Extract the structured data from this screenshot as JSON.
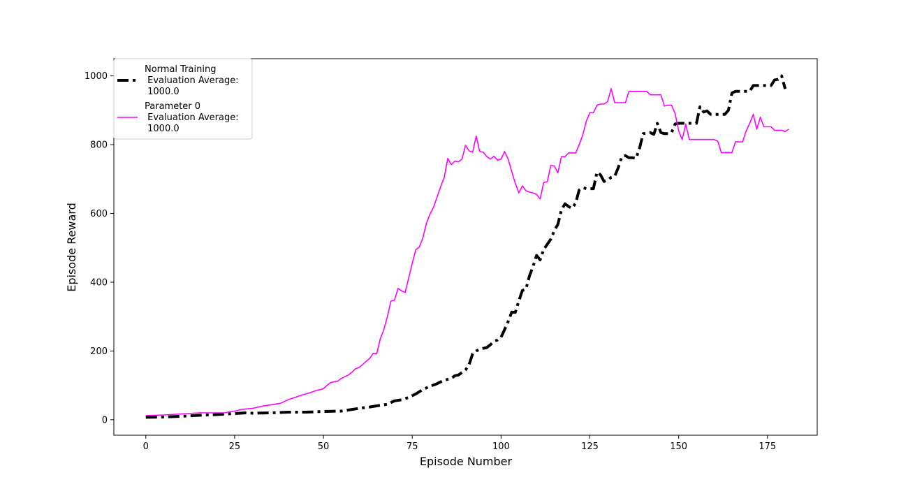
{
  "chart_data": {
    "type": "line",
    "title": "",
    "xlabel": "Episode Number",
    "ylabel": "Episode Reward",
    "xlim": [
      -9,
      189
    ],
    "ylim": [
      -45,
      1050
    ],
    "xticks": [
      0,
      25,
      50,
      75,
      100,
      125,
      150,
      175
    ],
    "yticks": [
      0,
      200,
      400,
      600,
      800,
      1000
    ],
    "grid": false,
    "legend_position": "upper-left",
    "series": [
      {
        "name": "Normal Training\n Evaluation Average:\n 1000.0",
        "color": "#000000",
        "line_style": "dash-dot",
        "points": [
          [
            0,
            7
          ],
          [
            5,
            8
          ],
          [
            10,
            10
          ],
          [
            15,
            13
          ],
          [
            20,
            15
          ],
          [
            25,
            18
          ],
          [
            28,
            20
          ],
          [
            30,
            19
          ],
          [
            35,
            20
          ],
          [
            40,
            22
          ],
          [
            45,
            22
          ],
          [
            50,
            24
          ],
          [
            55,
            25
          ],
          [
            60,
            33
          ],
          [
            63,
            37
          ],
          [
            66,
            42
          ],
          [
            68,
            45
          ],
          [
            70,
            55
          ],
          [
            72,
            58
          ],
          [
            74,
            65
          ],
          [
            76,
            75
          ],
          [
            78,
            88
          ],
          [
            80,
            97
          ],
          [
            82,
            105
          ],
          [
            84,
            115
          ],
          [
            86,
            120
          ],
          [
            87,
            128
          ],
          [
            88,
            130
          ],
          [
            90,
            145
          ],
          [
            91,
            160
          ],
          [
            92,
            192
          ],
          [
            93,
            200
          ],
          [
            94,
            205
          ],
          [
            96,
            210
          ],
          [
            97,
            218
          ],
          [
            98,
            228
          ],
          [
            99,
            232
          ],
          [
            100,
            240
          ],
          [
            101,
            262
          ],
          [
            102,
            285
          ],
          [
            103,
            313
          ],
          [
            104,
            312
          ],
          [
            105,
            345
          ],
          [
            106,
            376
          ],
          [
            107,
            380
          ],
          [
            108,
            418
          ],
          [
            109,
            445
          ],
          [
            110,
            478
          ],
          [
            111,
            465
          ],
          [
            112,
            495
          ],
          [
            113,
            510
          ],
          [
            114,
            525
          ],
          [
            115,
            550
          ],
          [
            116,
            568
          ],
          [
            117,
            610
          ],
          [
            118,
            628
          ],
          [
            119,
            620
          ],
          [
            120,
            615
          ],
          [
            121,
            630
          ],
          [
            122,
            668
          ],
          [
            123,
            675
          ],
          [
            124,
            672
          ],
          [
            126,
            672
          ],
          [
            127,
            720
          ],
          [
            128,
            712
          ],
          [
            129,
            693
          ],
          [
            130,
            697
          ],
          [
            131,
            705
          ],
          [
            132,
            708
          ],
          [
            133,
            733
          ],
          [
            134,
            765
          ],
          [
            135,
            768
          ],
          [
            136,
            762
          ],
          [
            137,
            762
          ],
          [
            138,
            760
          ],
          [
            139,
            790
          ],
          [
            140,
            832
          ],
          [
            142,
            835
          ],
          [
            143,
            830
          ],
          [
            144,
            862
          ],
          [
            145,
            835
          ],
          [
            146,
            832
          ],
          [
            147,
            832
          ],
          [
            148,
            835
          ],
          [
            149,
            860
          ],
          [
            150,
            862
          ],
          [
            152,
            862
          ],
          [
            155,
            862
          ],
          [
            156,
            910
          ],
          [
            157,
            895
          ],
          [
            158,
            898
          ],
          [
            159,
            888
          ],
          [
            163,
            888
          ],
          [
            164,
            900
          ],
          [
            165,
            950
          ],
          [
            166,
            955
          ],
          [
            167,
            955
          ],
          [
            169,
            955
          ],
          [
            170,
            955
          ],
          [
            171,
            972
          ],
          [
            173,
            972
          ],
          [
            175,
            972
          ],
          [
            176,
            972
          ],
          [
            177,
            988
          ],
          [
            178,
            990
          ],
          [
            179,
            1000
          ],
          [
            180,
            962
          ]
        ]
      },
      {
        "name": "Parameter 0\n Evaluation Average:\n 1000.0",
        "color": "#ff00ff",
        "line_style": "solid",
        "points": [
          [
            0,
            12
          ],
          [
            5,
            14
          ],
          [
            10,
            17
          ],
          [
            15,
            20
          ],
          [
            18,
            20
          ],
          [
            22,
            20
          ],
          [
            25,
            25
          ],
          [
            27,
            30
          ],
          [
            30,
            33
          ],
          [
            33,
            40
          ],
          [
            35,
            43
          ],
          [
            38,
            48
          ],
          [
            40,
            58
          ],
          [
            42,
            65
          ],
          [
            44,
            72
          ],
          [
            46,
            78
          ],
          [
            48,
            85
          ],
          [
            50,
            90
          ],
          [
            51,
            100
          ],
          [
            52,
            108
          ],
          [
            53,
            110
          ],
          [
            54,
            112
          ],
          [
            55,
            120
          ],
          [
            56,
            125
          ],
          [
            57,
            130
          ],
          [
            58,
            138
          ],
          [
            59,
            148
          ],
          [
            60,
            152
          ],
          [
            61,
            160
          ],
          [
            62,
            170
          ],
          [
            63,
            178
          ],
          [
            64,
            193
          ],
          [
            65,
            192
          ],
          [
            66,
            235
          ],
          [
            67,
            262
          ],
          [
            68,
            300
          ],
          [
            69,
            345
          ],
          [
            70,
            348
          ],
          [
            71,
            382
          ],
          [
            72,
            375
          ],
          [
            73,
            370
          ],
          [
            74,
            412
          ],
          [
            75,
            455
          ],
          [
            76,
            495
          ],
          [
            77,
            502
          ],
          [
            78,
            530
          ],
          [
            79,
            572
          ],
          [
            80,
            598
          ],
          [
            81,
            618
          ],
          [
            82,
            648
          ],
          [
            83,
            678
          ],
          [
            84,
            705
          ],
          [
            85,
            760
          ],
          [
            86,
            742
          ],
          [
            87,
            752
          ],
          [
            88,
            750
          ],
          [
            89,
            758
          ],
          [
            90,
            798
          ],
          [
            91,
            782
          ],
          [
            92,
            778
          ],
          [
            93,
            825
          ],
          [
            94,
            780
          ],
          [
            95,
            778
          ],
          [
            96,
            765
          ],
          [
            97,
            758
          ],
          [
            98,
            766
          ],
          [
            99,
            755
          ],
          [
            100,
            758
          ],
          [
            101,
            780
          ],
          [
            102,
            758
          ],
          [
            103,
            722
          ],
          [
            104,
            688
          ],
          [
            105,
            660
          ],
          [
            106,
            680
          ],
          [
            107,
            666
          ],
          [
            108,
            662
          ],
          [
            109,
            660
          ],
          [
            110,
            655
          ],
          [
            111,
            642
          ],
          [
            112,
            690
          ],
          [
            113,
            692
          ],
          [
            114,
            740
          ],
          [
            115,
            738
          ],
          [
            116,
            718
          ],
          [
            117,
            765
          ],
          [
            118,
            765
          ],
          [
            119,
            776
          ],
          [
            120,
            776
          ],
          [
            121,
            776
          ],
          [
            122,
            800
          ],
          [
            123,
            828
          ],
          [
            124,
            868
          ],
          [
            125,
            893
          ],
          [
            126,
            893
          ],
          [
            127,
            915
          ],
          [
            128,
            918
          ],
          [
            129,
            918
          ],
          [
            130,
            925
          ],
          [
            131,
            963
          ],
          [
            132,
            922
          ],
          [
            133,
            922
          ],
          [
            135,
            922
          ],
          [
            136,
            955
          ],
          [
            138,
            955
          ],
          [
            140,
            955
          ],
          [
            141,
            955
          ],
          [
            142,
            945
          ],
          [
            143,
            945
          ],
          [
            144,
            945
          ],
          [
            145,
            945
          ],
          [
            146,
            912
          ],
          [
            147,
            915
          ],
          [
            148,
            915
          ],
          [
            149,
            890
          ],
          [
            150,
            840
          ],
          [
            151,
            815
          ],
          [
            152,
            860
          ],
          [
            153,
            815
          ],
          [
            155,
            815
          ],
          [
            158,
            815
          ],
          [
            160,
            815
          ],
          [
            161,
            810
          ],
          [
            162,
            777
          ],
          [
            163,
            777
          ],
          [
            164,
            777
          ],
          [
            165,
            777
          ],
          [
            166,
            808
          ],
          [
            167,
            808
          ],
          [
            168,
            808
          ],
          [
            169,
            840
          ],
          [
            170,
            862
          ],
          [
            171,
            888
          ],
          [
            172,
            845
          ],
          [
            173,
            880
          ],
          [
            174,
            852
          ],
          [
            175,
            852
          ],
          [
            176,
            852
          ],
          [
            177,
            842
          ],
          [
            178,
            842
          ],
          [
            179,
            842
          ],
          [
            180,
            838
          ],
          [
            181,
            845
          ]
        ]
      }
    ]
  }
}
